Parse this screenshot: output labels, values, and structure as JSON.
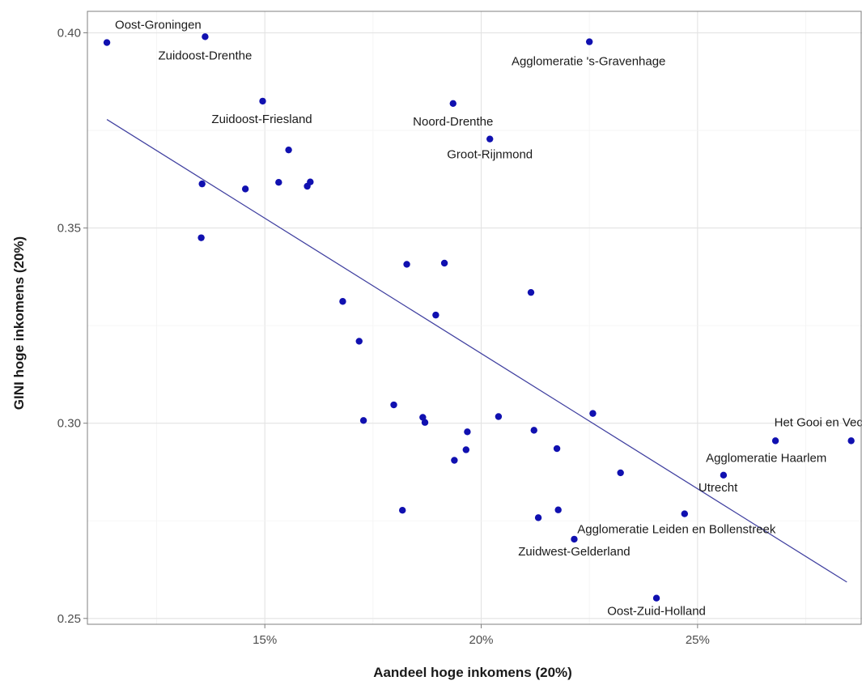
{
  "chart_data": {
    "type": "scatter",
    "title": "",
    "xlabel": "Aandeel hoge inkomens (20%)",
    "ylabel": "GINI hoge inkomens (20%)",
    "xlim": [
      0.109,
      0.288
    ],
    "ylim": [
      0.2485,
      0.4055
    ],
    "x_ticks": [
      {
        "value": 0.15,
        "label": "15%"
      },
      {
        "value": 0.2,
        "label": "20%"
      },
      {
        "value": 0.25,
        "label": "25%"
      }
    ],
    "y_ticks": [
      {
        "value": 0.25,
        "label": "0.25"
      },
      {
        "value": 0.3,
        "label": "0.30"
      },
      {
        "value": 0.35,
        "label": "0.35"
      },
      {
        "value": 0.4,
        "label": "0.40"
      }
    ],
    "grid": true,
    "point_color": "#1010b0",
    "line_color": "#4040a0",
    "trendline": {
      "x": [
        0.1135,
        0.2845
      ],
      "y": [
        0.3778,
        0.2593
      ]
    },
    "points": [
      {
        "x": 0.1135,
        "y": 0.3975,
        "label": "Oost-Groningen"
      },
      {
        "x": 0.1362,
        "y": 0.399,
        "label": "Zuidoost-Drenthe"
      },
      {
        "x": 0.225,
        "y": 0.3977,
        "label": "Agglomeratie 's-Gravenhage"
      },
      {
        "x": 0.1495,
        "y": 0.3825,
        "label": "Zuidoost-Friesland"
      },
      {
        "x": 0.1935,
        "y": 0.3819,
        "label": "Noord-Drenthe"
      },
      {
        "x": 0.202,
        "y": 0.3728,
        "label": "Groot-Rijnmond"
      },
      {
        "x": 0.1555,
        "y": 0.37
      },
      {
        "x": 0.1355,
        "y": 0.3613
      },
      {
        "x": 0.1455,
        "y": 0.36
      },
      {
        "x": 0.1532,
        "y": 0.3617
      },
      {
        "x": 0.1598,
        "y": 0.3607
      },
      {
        "x": 0.1605,
        "y": 0.3618
      },
      {
        "x": 0.1353,
        "y": 0.3475
      },
      {
        "x": 0.1828,
        "y": 0.3407
      },
      {
        "x": 0.1915,
        "y": 0.341
      },
      {
        "x": 0.2115,
        "y": 0.3335
      },
      {
        "x": 0.168,
        "y": 0.3312
      },
      {
        "x": 0.1895,
        "y": 0.3277
      },
      {
        "x": 0.1718,
        "y": 0.321
      },
      {
        "x": 0.1798,
        "y": 0.3047
      },
      {
        "x": 0.1728,
        "y": 0.3007
      },
      {
        "x": 0.1865,
        "y": 0.3015
      },
      {
        "x": 0.187,
        "y": 0.3002
      },
      {
        "x": 0.204,
        "y": 0.3017
      },
      {
        "x": 0.2258,
        "y": 0.3025
      },
      {
        "x": 0.2122,
        "y": 0.2982
      },
      {
        "x": 0.1968,
        "y": 0.2978
      },
      {
        "x": 0.1965,
        "y": 0.2932
      },
      {
        "x": 0.1938,
        "y": 0.2905
      },
      {
        "x": 0.2175,
        "y": 0.2935
      },
      {
        "x": 0.2322,
        "y": 0.2873
      },
      {
        "x": 0.2855,
        "y": 0.2955,
        "label": "Het Gooi en Vecht"
      },
      {
        "x": 0.268,
        "y": 0.2955,
        "label": "Agglomeratie Haarlem"
      },
      {
        "x": 0.256,
        "y": 0.2867,
        "label": "Utrecht"
      },
      {
        "x": 0.247,
        "y": 0.2768,
        "label": "Agglomeratie Leiden en Bollenstreek"
      },
      {
        "x": 0.1818,
        "y": 0.2777
      },
      {
        "x": 0.2132,
        "y": 0.2758
      },
      {
        "x": 0.2178,
        "y": 0.2778
      },
      {
        "x": 0.2215,
        "y": 0.2703,
        "label": "Zuidwest-Gelderland"
      },
      {
        "x": 0.2405,
        "y": 0.2552,
        "label": "Oost-Zuid-Holland"
      }
    ]
  }
}
